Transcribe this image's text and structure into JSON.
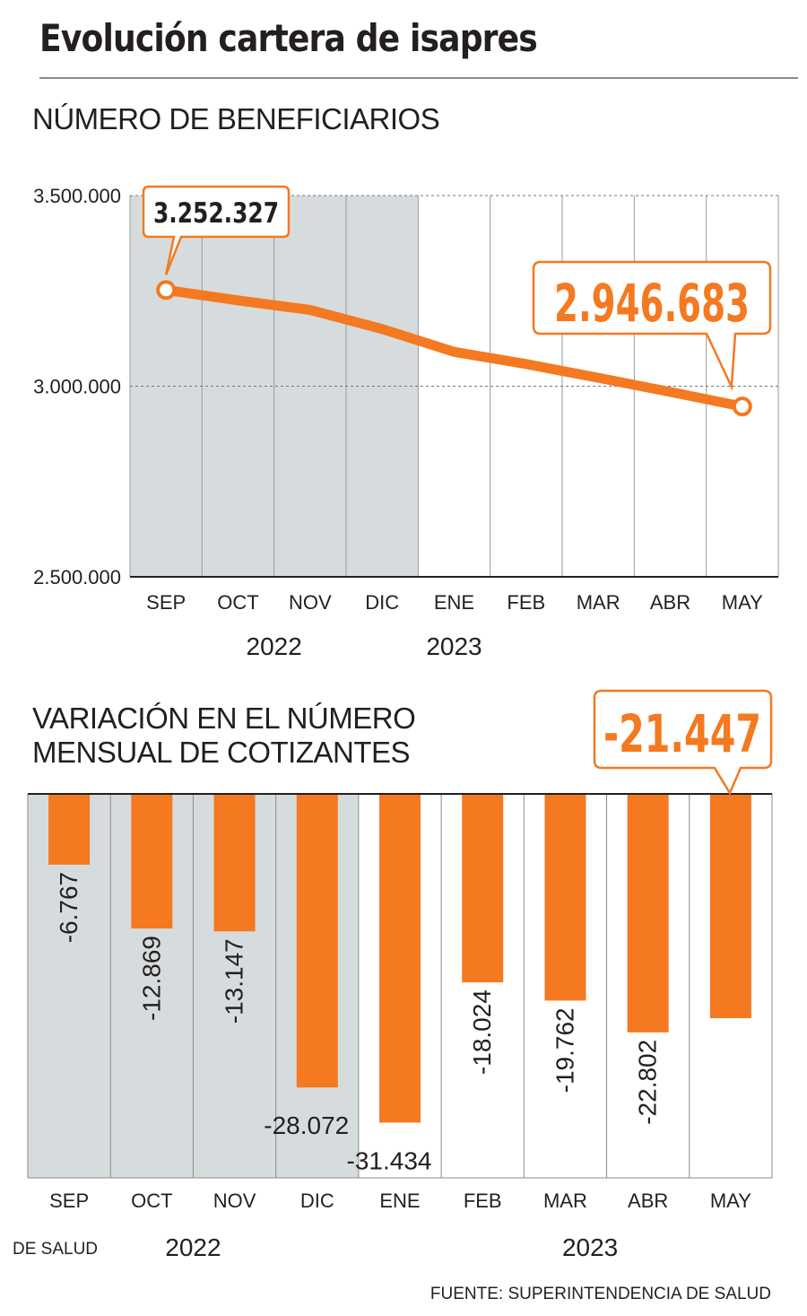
{
  "title": "Evolución cartera de isapres",
  "source": "FUENTE: SUPERINTENDENCIA DE SALUD",
  "stray_label": "DE SALUD",
  "colors": {
    "accent": "#f47920",
    "shade": "#d6dcdd",
    "text": "#231f20"
  },
  "chart_data": [
    {
      "type": "line",
      "title": "NÚMERO DE BENEFICIARIOS",
      "categories": [
        "SEP",
        "OCT",
        "NOV",
        "DIC",
        "ENE",
        "FEB",
        "MAR",
        "ABR",
        "MAY"
      ],
      "years": [
        {
          "label": "2022",
          "months": [
            "SEP",
            "OCT",
            "NOV",
            "DIC"
          ]
        },
        {
          "label": "2023",
          "months": [
            "ENE",
            "FEB",
            "MAR",
            "ABR",
            "MAY"
          ]
        }
      ],
      "values": [
        3252327,
        3225000,
        3200000,
        3150000,
        3090000,
        3058000,
        3022000,
        2985000,
        2946683
      ],
      "ylim": [
        2500000,
        3500000
      ],
      "yticks": [
        "3.500.000",
        "3.000.000",
        "2.500.000"
      ],
      "ytick_values": [
        3500000,
        3000000,
        2500000
      ],
      "shaded_months": [
        "SEP",
        "OCT",
        "NOV",
        "DIC"
      ],
      "callouts": [
        {
          "month": "SEP",
          "label": "3.252.327"
        },
        {
          "month": "MAY",
          "label": "2.946.683"
        }
      ]
    },
    {
      "type": "bar",
      "title_lines": [
        "VARIACIÓN EN EL NÚMERO",
        "MENSUAL DE COTIZANTES"
      ],
      "categories": [
        "SEP",
        "OCT",
        "NOV",
        "DIC",
        "ENE",
        "FEB",
        "MAR",
        "ABR",
        "MAY"
      ],
      "years": [
        {
          "label": "2022",
          "months": [
            "SEP",
            "OCT",
            "NOV",
            "DIC"
          ]
        },
        {
          "label": "2023",
          "months": [
            "ENE",
            "FEB",
            "MAR",
            "ABR",
            "MAY"
          ]
        }
      ],
      "values": [
        -6767,
        -12869,
        -13147,
        -28072,
        -31434,
        -18024,
        -19762,
        -22802,
        -21447
      ],
      "labels": [
        "-6.767",
        "-12.869",
        "-13.147",
        "-28.072",
        "-31.434",
        "-18.024",
        "-19.762",
        "-22.802",
        "-21.447"
      ],
      "ylim": [
        -35000,
        0
      ],
      "shaded_months": [
        "SEP",
        "OCT",
        "NOV",
        "DIC"
      ],
      "callout": {
        "month": "MAY",
        "label": "-21.447"
      }
    }
  ]
}
